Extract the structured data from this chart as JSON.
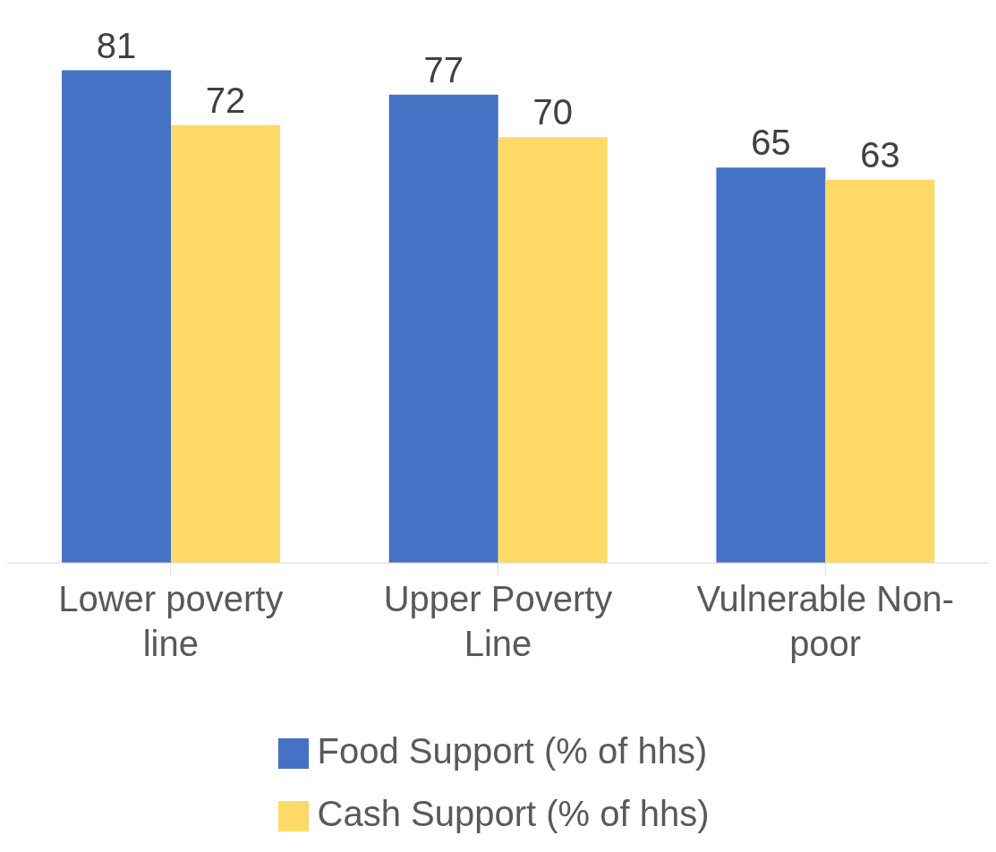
{
  "chart_data": {
    "type": "bar",
    "categories": [
      "Lower poverty line",
      "Upper Poverty Line",
      "Vulnerable Non-poor"
    ],
    "series": [
      {
        "name": "Food Support (% of hhs)",
        "color": "#4472c4",
        "values": [
          81,
          77,
          65
        ]
      },
      {
        "name": "Cash Support (% of hhs)",
        "color": "#ffd966",
        "values": [
          72,
          70,
          63
        ]
      }
    ],
    "data_labels": true,
    "legend": "bottom"
  }
}
